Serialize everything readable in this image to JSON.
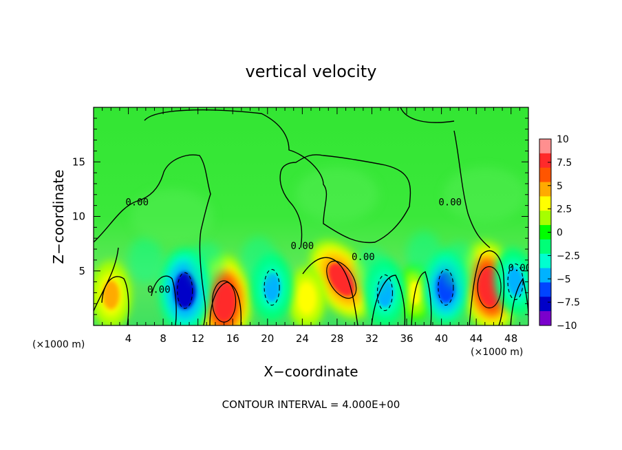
{
  "chart_data": {
    "type": "heatmap",
    "title": "vertical velocity",
    "xlabel": "X−coordinate",
    "ylabel": "Z−coordinate",
    "x_unit_left": "(×1000 m)",
    "x_unit_right": "(×1000 m)",
    "footer": "CONTOUR INTERVAL = 4.000E+00",
    "xlim": [
      0,
      50
    ],
    "ylim": [
      0,
      20
    ],
    "x_ticks": [
      4,
      8,
      12,
      16,
      20,
      24,
      28,
      32,
      36,
      40,
      44,
      48
    ],
    "y_ticks": [
      5,
      10,
      15
    ],
    "contour_labels": [
      {
        "text": "0.00",
        "x": 5,
        "y": 11
      },
      {
        "text": "0.00",
        "x": 7.5,
        "y": 3
      },
      {
        "text": "0.00",
        "x": 24,
        "y": 7
      },
      {
        "text": "0.00",
        "x": 31,
        "y": 6
      },
      {
        "text": "0.00",
        "x": 41,
        "y": 11
      },
      {
        "text": "0.00",
        "x": 49,
        "y": 5
      }
    ],
    "colorbar": {
      "min": -10,
      "max": 10,
      "tick_values": [
        10,
        7.5,
        5,
        2.5,
        0,
        -2.5,
        -5,
        -7.5,
        -10
      ],
      "tick_labels": [
        "10",
        "7.5",
        "5",
        "2.5",
        "0",
        "−2.5",
        "−5",
        "−7.5",
        "−10"
      ],
      "colors": [
        "#ff8f8f",
        "#ff2a2a",
        "#ff5500",
        "#ffaa00",
        "#ffff00",
        "#a6ff00",
        "#00ff00",
        "#00ff77",
        "#00ffd0",
        "#00b2ff",
        "#0044ff",
        "#0000c8",
        "#7a00cc"
      ]
    },
    "features": [
      {
        "type": "updraft",
        "x": 15,
        "y": 2.2,
        "peak": 9
      },
      {
        "type": "updraft",
        "x": 28.5,
        "y": 4.2,
        "peak": 8
      },
      {
        "type": "updraft",
        "x": 45.5,
        "y": 3.5,
        "peak": 9
      },
      {
        "type": "updraft",
        "x": 2,
        "y": 2.8,
        "peak": 5
      },
      {
        "type": "updraft",
        "x": 24.5,
        "y": 2.5,
        "peak": 4
      },
      {
        "type": "updraft",
        "x": 37,
        "y": 3,
        "peak": 3
      },
      {
        "type": "downdraft",
        "x": 10.5,
        "y": 3.2,
        "peak": -8
      },
      {
        "type": "downdraft",
        "x": 20.5,
        "y": 3.5,
        "peak": -5
      },
      {
        "type": "downdraft",
        "x": 33.5,
        "y": 3,
        "peak": -5
      },
      {
        "type": "downdraft",
        "x": 40.5,
        "y": 3.5,
        "peak": -6
      },
      {
        "type": "downdraft",
        "x": 48.5,
        "y": 4,
        "peak": -5
      }
    ]
  }
}
